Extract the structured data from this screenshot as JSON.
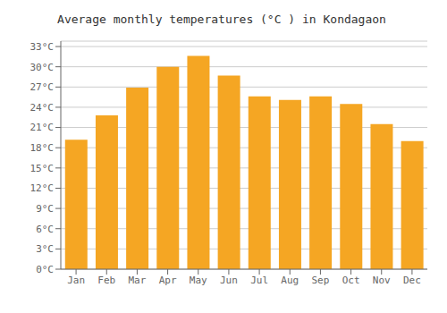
{
  "chart_data": {
    "type": "bar",
    "title": "Average monthly temperatures (°C ) in Kondagaon",
    "categories": [
      "Jan",
      "Feb",
      "Mar",
      "Apr",
      "May",
      "Jun",
      "Jul",
      "Aug",
      "Sep",
      "Oct",
      "Nov",
      "Dec"
    ],
    "values": [
      19.2,
      22.8,
      26.9,
      30.0,
      31.6,
      28.7,
      25.6,
      25.1,
      25.6,
      24.5,
      21.5,
      19.0
    ],
    "color": "#F5A623",
    "ylim": [
      0,
      33.8
    ],
    "yticks": [
      {
        "value": 0,
        "label": "0°C"
      },
      {
        "value": 3,
        "label": "3°C"
      },
      {
        "value": 6,
        "label": "6°C"
      },
      {
        "value": 9,
        "label": "9°C"
      },
      {
        "value": 12,
        "label": "12°C"
      },
      {
        "value": 15,
        "label": "15°C"
      },
      {
        "value": 18,
        "label": "18°C"
      },
      {
        "value": 21,
        "label": "21°C"
      },
      {
        "value": 24,
        "label": "24°C"
      },
      {
        "value": 27,
        "label": "27°C"
      },
      {
        "value": 30,
        "label": "30°C"
      },
      {
        "value": 33,
        "label": "33°C"
      }
    ],
    "grid": true
  }
}
